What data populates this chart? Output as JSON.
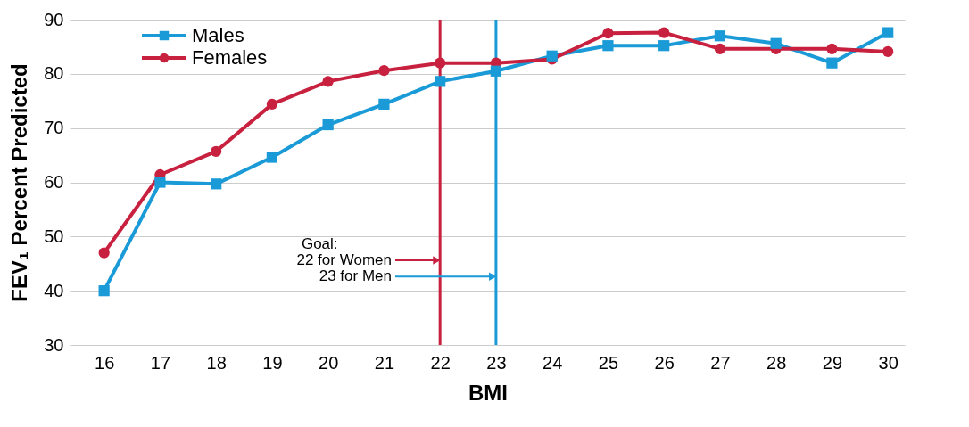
{
  "chart_data": {
    "type": "line",
    "xlabel": "BMI",
    "ylabel": "FEV₁ Percent Predicted",
    "x": [
      16,
      17,
      18,
      19,
      20,
      21,
      22,
      23,
      24,
      25,
      26,
      27,
      28,
      29,
      30
    ],
    "series": [
      {
        "name": "Males",
        "color": "#1a9bd7",
        "marker": "square",
        "values": [
          40,
          60,
          59.7,
          64.6,
          70.6,
          74.4,
          78.6,
          80.5,
          83.3,
          85.2,
          85.2,
          87,
          85.6,
          82,
          87.6
        ]
      },
      {
        "name": "Females",
        "color": "#c8203f",
        "marker": "circle",
        "values": [
          47,
          61.4,
          65.7,
          74.4,
          78.6,
          80.6,
          82,
          82,
          82.7,
          87.5,
          87.6,
          84.6,
          84.6,
          84.6,
          84.1
        ]
      }
    ],
    "xlim": [
      15.4,
      30.3
    ],
    "xticks": [
      16,
      17,
      18,
      19,
      20,
      21,
      22,
      23,
      24,
      25,
      26,
      27,
      28,
      29,
      30
    ],
    "ylim": [
      30,
      90
    ],
    "yticks": [
      30,
      40,
      50,
      60,
      70,
      80,
      90
    ],
    "grid": "y",
    "legend": "top left",
    "ref_lines": [
      {
        "axis": "x",
        "value": 22,
        "label": "22 for Women",
        "color": "#c8203f"
      },
      {
        "axis": "x",
        "value": 23,
        "label": "23 for Men",
        "color": "#1a9bd7"
      }
    ],
    "annotations": [
      "Goal:"
    ]
  }
}
